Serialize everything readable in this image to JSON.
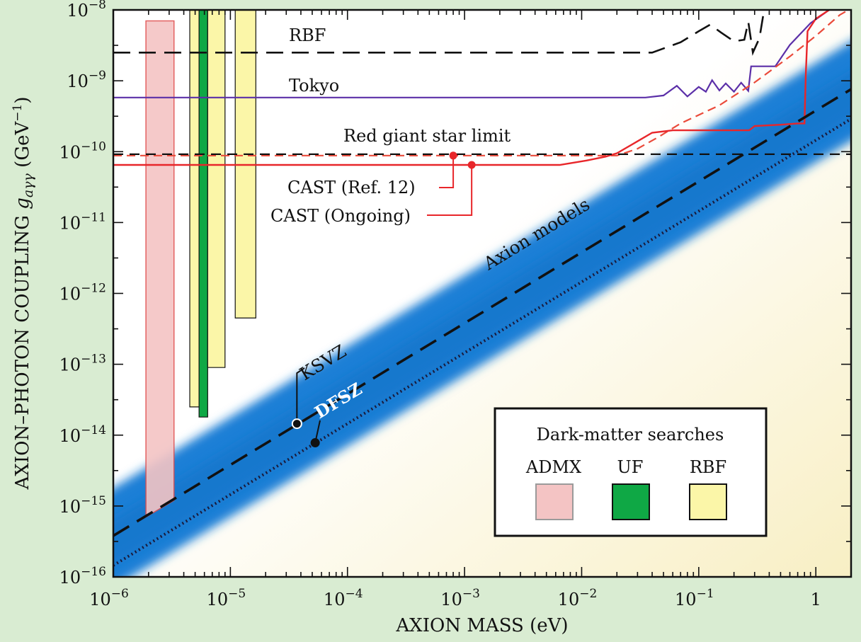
{
  "chart_data": {
    "type": "line",
    "title": "",
    "xlabel": "AXION MASS (eV)",
    "ylabel": "AXION–PHOTON COUPLING g_aγγ (GeV⁻¹)",
    "ylabel_parts": {
      "main": "AXION–PHOTON COUPLING ",
      "sym": "g",
      "sub": "aγγ",
      "unit": " (GeV",
      "exp": "−1",
      "close": ")"
    },
    "x_scale": "log",
    "y_scale": "log",
    "xlim": [
      1e-06,
      2.0
    ],
    "ylim": [
      1e-16,
      1e-08
    ],
    "x_ticks": [
      {
        "value": 1e-06,
        "base": "10",
        "exp": "−6"
      },
      {
        "value": 1e-05,
        "base": "10",
        "exp": "−5"
      },
      {
        "value": 0.0001,
        "base": "10",
        "exp": "−4"
      },
      {
        "value": 0.001,
        "base": "10",
        "exp": "−3"
      },
      {
        "value": 0.01,
        "base": "10",
        "exp": "−2"
      },
      {
        "value": 0.1,
        "base": "10",
        "exp": "−1"
      },
      {
        "value": 1,
        "base": "1",
        "exp": ""
      }
    ],
    "y_ticks": [
      {
        "value": 1e-08,
        "base": "10",
        "exp": "−8"
      },
      {
        "value": 1e-09,
        "base": "10",
        "exp": "−9"
      },
      {
        "value": 1e-10,
        "base": "10",
        "exp": "−10"
      },
      {
        "value": 1e-11,
        "base": "10",
        "exp": "−11"
      },
      {
        "value": 1e-12,
        "base": "10",
        "exp": "−12"
      },
      {
        "value": 1e-13,
        "base": "10",
        "exp": "−13"
      },
      {
        "value": 1e-14,
        "base": "10",
        "exp": "−14"
      },
      {
        "value": 1e-15,
        "base": "10",
        "exp": "−15"
      },
      {
        "value": 1e-16,
        "base": "10",
        "exp": "−16"
      }
    ],
    "colors": {
      "admx": "#f4c4c4",
      "admx_edge": "#e05050",
      "uf": "#0fa845",
      "rbf_fill": "#fbf6a8",
      "cast": "#e8262a",
      "cast_ref": "#ea4a3a",
      "tokyo": "#5b2fa8",
      "band": "#1d7fd6"
    },
    "series": [
      {
        "name": "RBF",
        "style": "dashed-black",
        "points": [
          [
            1e-06,
            2.5e-09
          ],
          [
            0.04,
            2.5e-09
          ],
          [
            0.07,
            3.5e-09
          ],
          [
            0.1,
            5e-09
          ],
          [
            0.125,
            6.2e-09
          ],
          [
            0.155,
            4.8e-09
          ],
          [
            0.2,
            3.6e-09
          ],
          [
            0.245,
            3.8e-09
          ],
          [
            0.265,
            6.8e-09
          ],
          [
            0.29,
            2.5e-09
          ],
          [
            0.33,
            4e-09
          ],
          [
            0.36,
            9.5e-09
          ],
          [
            0.38,
            1e-08
          ]
        ]
      },
      {
        "name": "Tokyo",
        "style": "solid-purple",
        "points": [
          [
            1e-06,
            5.8e-10
          ],
          [
            0.035,
            5.8e-10
          ],
          [
            0.05,
            6.2e-10
          ],
          [
            0.065,
            8.5e-10
          ],
          [
            0.08,
            6e-10
          ],
          [
            0.1,
            8.2e-10
          ],
          [
            0.115,
            7e-10
          ],
          [
            0.13,
            1.02e-09
          ],
          [
            0.15,
            7.3e-10
          ],
          [
            0.17,
            9.2e-10
          ],
          [
            0.2,
            7e-10
          ],
          [
            0.23,
            9.4e-10
          ],
          [
            0.265,
            7.2e-10
          ],
          [
            0.28,
            1.6e-09
          ],
          [
            0.45,
            1.6e-09
          ],
          [
            0.6,
            3.2e-09
          ],
          [
            0.9,
            6.5e-09
          ],
          [
            1.3,
            1e-08
          ]
        ]
      },
      {
        "name": "CAST (Ref. 12)",
        "style": "dashed-red",
        "points": [
          [
            1e-06,
            8.8e-11
          ],
          [
            0.02,
            8.8e-11
          ],
          [
            0.03,
            1.1e-10
          ],
          [
            0.045,
            1.6e-10
          ],
          [
            0.07,
            2.5e-10
          ],
          [
            0.15,
            4.5e-10
          ],
          [
            0.3,
            9.5e-10
          ],
          [
            0.6,
            2.2e-09
          ],
          [
            1.0,
            4.3e-09
          ],
          [
            1.6,
            8.5e-09
          ],
          [
            1.9,
            1e-08
          ]
        ]
      },
      {
        "name": "CAST (Ongoing)",
        "style": "solid-red",
        "points": [
          [
            1e-06,
            6.5e-11
          ],
          [
            0.0065,
            6.5e-11
          ],
          [
            0.011,
            7.5e-11
          ],
          [
            0.016,
            8.5e-11
          ],
          [
            0.02,
            9.5e-11
          ],
          [
            0.03,
            1.4e-10
          ],
          [
            0.04,
            1.85e-10
          ],
          [
            0.06,
            2e-10
          ],
          [
            0.1,
            2e-10
          ],
          [
            0.18,
            2e-10
          ],
          [
            0.27,
            2e-10
          ],
          [
            0.3,
            2.3e-10
          ],
          [
            0.5,
            2.4e-10
          ],
          [
            0.7,
            2.5e-10
          ],
          [
            0.8,
            2.5e-10
          ],
          [
            0.82,
            1.2e-09
          ],
          [
            0.85,
            5e-09
          ],
          [
            1.0,
            7.5e-09
          ],
          [
            1.3,
            1e-08
          ]
        ]
      },
      {
        "name": "Red giant star limit",
        "style": "dashed-black",
        "points": [
          [
            1e-06,
            9.2e-11
          ],
          [
            2.0,
            9.2e-11
          ]
        ]
      },
      {
        "name": "KSVZ",
        "style": "dashed-black",
        "relation": "g = 3.8e-10 * m",
        "points": [
          [
            1e-06,
            3.8e-16
          ],
          [
            2.0,
            7.6e-10
          ]
        ]
      },
      {
        "name": "DFSZ",
        "style": "dotted",
        "relation": "g = 1.45e-10 * m",
        "points": [
          [
            1e-06,
            1.45e-16
          ],
          [
            2.0,
            2.9e-10
          ]
        ]
      }
    ],
    "bands": [
      {
        "name": "Axion models",
        "lower_coeff": 7e-11,
        "upper_coeff": 1.8e-09
      }
    ],
    "exclusions": [
      {
        "name": "ADMX",
        "x": [
          1.9e-06,
          3.3e-06
        ],
        "top": 7e-09,
        "bottom_left": 7e-16,
        "bottom_right": 1.2e-15
      },
      {
        "name": "RBF",
        "x": [
          4.5e-06,
          5.6e-06
        ],
        "top": 1e-08,
        "bottom": 2.5e-14
      },
      {
        "name": "UF",
        "x": [
          5.4e-06,
          6.4e-06
        ],
        "top": 1e-08,
        "bottom": 1.8e-14
      },
      {
        "name": "RBF",
        "x": [
          6.4e-06,
          9e-06
        ],
        "top": 1e-08,
        "bottom": 9e-14
      },
      {
        "name": "RBF",
        "x": [
          1.1e-05,
          1.65e-05
        ],
        "top": 1e-08,
        "bottom": 4.5e-13
      }
    ],
    "markers": [
      {
        "name": "CAST (Ref. 12)",
        "x": 0.0008,
        "y": 8.8e-11
      },
      {
        "name": "CAST (Ongoing)",
        "x": 0.00115,
        "y": 6.5e-11
      },
      {
        "name": "KSVZ",
        "x": 3.7e-05,
        "y": 1.45e-14
      },
      {
        "name": "DFSZ",
        "x": 5.3e-05,
        "y": 7.8e-15
      }
    ],
    "annotations": {
      "rbf": "RBF",
      "tokyo": "Tokyo",
      "red_giant": "Red giant star limit",
      "cast_ref": "CAST (Ref. 12)",
      "cast_ongoing": "CAST (Ongoing)",
      "axion_models": "Axion models",
      "ksvz": "KSVZ",
      "dfsz": "DFSZ"
    },
    "legend": {
      "title": "Dark-matter searches",
      "placement": "bottom-right",
      "items": [
        {
          "label": "ADMX",
          "color": "#f4c4c4",
          "edge": "#9a9a9a"
        },
        {
          "label": "UF",
          "color": "#0fa845",
          "edge": "#111111"
        },
        {
          "label": "RBF",
          "color": "#fbf6a8",
          "edge": "#111111"
        }
      ]
    },
    "grid": false
  }
}
